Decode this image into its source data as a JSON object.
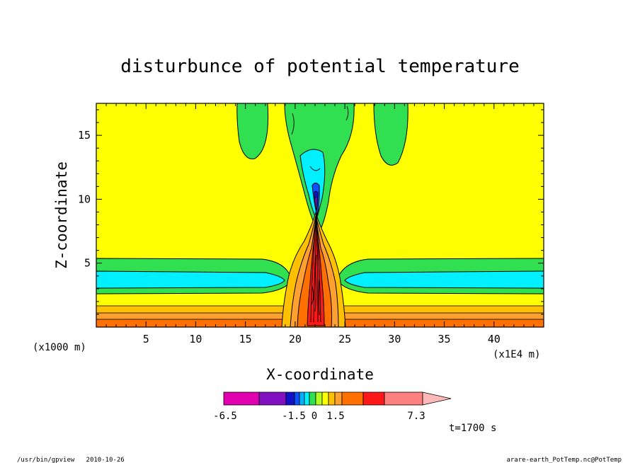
{
  "chart_data": {
    "type": "heatmap",
    "title": "disturbunce of potential temperature",
    "xlabel": "X-coordinate",
    "ylabel": "Z-coordinate",
    "x_unit_left": "(x1000 m)",
    "x_unit_right": "(x1E4 m)",
    "xlim": [
      0,
      45
    ],
    "ylim": [
      0,
      17.5
    ],
    "x_ticks": [
      5,
      10,
      15,
      20,
      25,
      30,
      35,
      40
    ],
    "y_ticks": [
      5,
      10,
      15
    ],
    "colorbar": {
      "labels": [
        "-6.5",
        "-1.5",
        "0",
        "1.5",
        "7.3"
      ],
      "colors": [
        "#e000b0",
        "#8010c0",
        "#1010c8",
        "#1050ff",
        "#00b0ff",
        "#00f0ff",
        "#30e050",
        "#b0ff20",
        "#ffff00",
        "#ffc000",
        "#ffa030",
        "#ff7000",
        "#ff1818",
        "#ff8080",
        "#ffb8b8"
      ]
    },
    "field_colors": {
      "background": "#ffff00",
      "green": "#30e050",
      "cyan": "#00f0ff",
      "blue": "#1050ff",
      "navy": "#1010c8",
      "purple": "#8010c0",
      "orange_light": "#ffc000",
      "orange": "#ffa030",
      "orange_dark": "#ff7000",
      "red": "#ff1818"
    },
    "time_label": "t=1700 s",
    "footer_left": "/usr/bin/gpview   2010-10-26",
    "footer_right": "arare-earth_PotTemp.nc@PotTemp"
  }
}
